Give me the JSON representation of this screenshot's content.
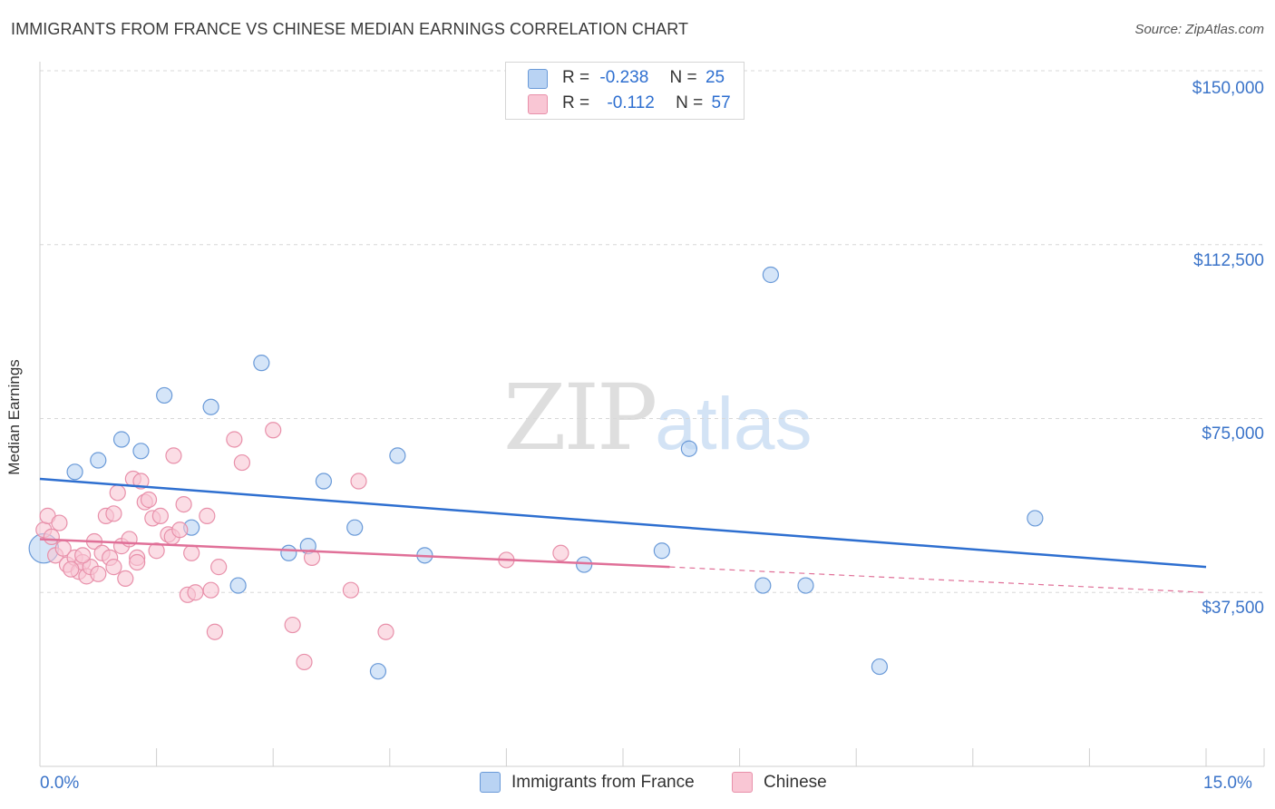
{
  "title": "IMMIGRANTS FROM FRANCE VS CHINESE MEDIAN EARNINGS CORRELATION CHART",
  "source": "Source: ZipAtlas.com",
  "watermark": {
    "zip": "ZIP",
    "atlas": "atlas"
  },
  "legend": {
    "r_label": "R =",
    "n_label": "N =",
    "rows": [
      {
        "series": "Immigrants from France",
        "r": "-0.238",
        "n": "25",
        "color": "#a9c8f0",
        "border": "#6a9ad8"
      },
      {
        "series": "Chinese",
        "r": "-0.112",
        "n": "57",
        "color": "#f8c0d0",
        "border": "#e890aa"
      }
    ]
  },
  "bottom_legend": [
    "Immigrants from France",
    "Chinese"
  ],
  "chart_data": {
    "type": "scatter",
    "title": "IMMIGRANTS FROM FRANCE VS CHINESE MEDIAN EARNINGS CORRELATION CHART",
    "xlabel": "",
    "ylabel": "Median Earnings",
    "xlim": [
      0,
      15
    ],
    "ylim": [
      0,
      150000
    ],
    "x_tick_labels": [
      "0.0%",
      "15.0%"
    ],
    "y_ticks": [
      37500,
      75000,
      112500,
      150000
    ],
    "y_tick_labels": [
      "$37,500",
      "$75,000",
      "$112,500",
      "$150,000"
    ],
    "series": [
      {
        "name": "Immigrants from France",
        "color": "#6a9ad8",
        "fill": "#b9d3f3",
        "trend": {
          "x": [
            0,
            15
          ],
          "y": [
            62000,
            43000
          ],
          "color": "#2e6fd0"
        },
        "points": [
          [
            0.05,
            47000,
            1.9
          ],
          [
            0.45,
            63500,
            1
          ],
          [
            0.75,
            66000,
            1
          ],
          [
            1.05,
            70500,
            1
          ],
          [
            1.3,
            68000,
            1
          ],
          [
            1.6,
            80000,
            1
          ],
          [
            1.95,
            51500,
            1
          ],
          [
            2.2,
            77500,
            1
          ],
          [
            2.55,
            39000,
            1
          ],
          [
            2.85,
            87000,
            1
          ],
          [
            3.2,
            46000,
            1
          ],
          [
            3.45,
            47500,
            1
          ],
          [
            3.65,
            61500,
            1
          ],
          [
            4.05,
            51500,
            1
          ],
          [
            4.35,
            20500,
            1
          ],
          [
            4.6,
            67000,
            1
          ],
          [
            4.95,
            45500,
            1
          ],
          [
            7.0,
            43500,
            1
          ],
          [
            8.0,
            46500,
            1
          ],
          [
            8.35,
            68500,
            1
          ],
          [
            9.3,
            39000,
            1
          ],
          [
            9.4,
            106000,
            1
          ],
          [
            9.85,
            39000,
            1
          ],
          [
            10.8,
            21500,
            1
          ],
          [
            12.8,
            53500,
            1
          ]
        ]
      },
      {
        "name": "Chinese",
        "color": "#e890aa",
        "fill": "#f9c6d4",
        "trend": {
          "x": [
            0,
            8.1
          ],
          "y": [
            49000,
            43000
          ],
          "color": "#e07098",
          "dashed_to": [
            15,
            37500
          ]
        },
        "points": [
          [
            0.05,
            51000,
            1
          ],
          [
            0.1,
            54000,
            1
          ],
          [
            0.15,
            49500,
            1
          ],
          [
            0.2,
            45500,
            1
          ],
          [
            0.25,
            52500,
            1
          ],
          [
            0.3,
            47000,
            1
          ],
          [
            0.35,
            43500,
            1
          ],
          [
            0.45,
            45000,
            1
          ],
          [
            0.5,
            42000,
            1
          ],
          [
            0.55,
            44000,
            1
          ],
          [
            0.6,
            41000,
            1
          ],
          [
            0.65,
            43000,
            1
          ],
          [
            0.7,
            48500,
            1
          ],
          [
            0.75,
            41500,
            1
          ],
          [
            0.8,
            46000,
            1
          ],
          [
            0.85,
            54000,
            1
          ],
          [
            0.9,
            45000,
            1
          ],
          [
            0.95,
            54500,
            1
          ],
          [
            1.0,
            59000,
            1
          ],
          [
            1.05,
            47500,
            1
          ],
          [
            1.1,
            40500,
            1
          ],
          [
            1.15,
            49000,
            1
          ],
          [
            1.2,
            62000,
            1
          ],
          [
            1.25,
            45000,
            1
          ],
          [
            1.3,
            61500,
            1
          ],
          [
            1.35,
            57000,
            1
          ],
          [
            1.4,
            57500,
            1
          ],
          [
            1.45,
            53500,
            1
          ],
          [
            1.5,
            46500,
            1
          ],
          [
            1.55,
            54000,
            1
          ],
          [
            1.65,
            50000,
            1
          ],
          [
            1.7,
            49500,
            1
          ],
          [
            1.72,
            67000,
            1
          ],
          [
            1.8,
            51000,
            1
          ],
          [
            1.85,
            56500,
            1
          ],
          [
            1.9,
            37000,
            1
          ],
          [
            1.95,
            46000,
            1
          ],
          [
            2.0,
            37500,
            1
          ],
          [
            2.15,
            54000,
            1
          ],
          [
            2.2,
            38000,
            1
          ],
          [
            2.3,
            43000,
            1
          ],
          [
            2.25,
            29000,
            1
          ],
          [
            2.5,
            70500,
            1
          ],
          [
            2.6,
            65500,
            1
          ],
          [
            3.0,
            72500,
            1
          ],
          [
            3.25,
            30500,
            1
          ],
          [
            3.4,
            22500,
            1
          ],
          [
            3.5,
            45000,
            1
          ],
          [
            4.0,
            38000,
            1
          ],
          [
            4.1,
            61500,
            1
          ],
          [
            4.45,
            29000,
            1
          ],
          [
            6.0,
            44500,
            1
          ],
          [
            6.7,
            46000,
            1
          ],
          [
            0.55,
            45500,
            1
          ],
          [
            0.95,
            43000,
            1
          ],
          [
            1.25,
            44000,
            1
          ],
          [
            0.4,
            42500,
            1
          ]
        ]
      }
    ]
  }
}
